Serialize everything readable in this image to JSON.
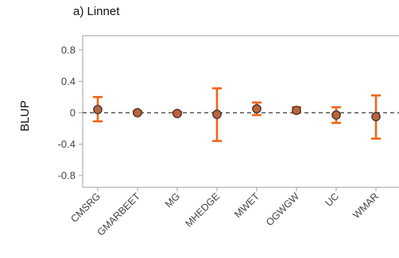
{
  "chart_data": {
    "type": "scatter",
    "title": "a) Linnet",
    "xlabel": "",
    "ylabel": "BLUP",
    "categories": [
      "CMSRG",
      "GMARBEET",
      "MG",
      "MHEDGE",
      "MWET",
      "OGWGW",
      "UC",
      "WMAR"
    ],
    "series": [
      {
        "values": [
          0.04,
          0.0,
          -0.01,
          -0.02,
          0.05,
          0.03,
          -0.03,
          -0.05
        ],
        "lower": [
          -0.11,
          -0.01,
          -0.02,
          -0.36,
          -0.03,
          0.0,
          -0.13,
          -0.33
        ],
        "upper": [
          0.2,
          0.02,
          0.01,
          0.31,
          0.13,
          0.07,
          0.07,
          0.22
        ]
      }
    ],
    "ylim": [
      -0.95,
      0.98
    ],
    "yticks": [
      0.8,
      0.4,
      0,
      -0.4,
      -0.8
    ],
    "ytick_labels": [
      "0.8",
      "0.4",
      "0",
      "-0.4",
      "-0.8"
    ],
    "reference_line": 0,
    "grid": false,
    "colors": {
      "point_fill": "#b8653f",
      "point_edge": "#3a2a22",
      "errorbar": "#f26419",
      "axis": "#b0b0b0",
      "zero_line": "#333333"
    }
  }
}
